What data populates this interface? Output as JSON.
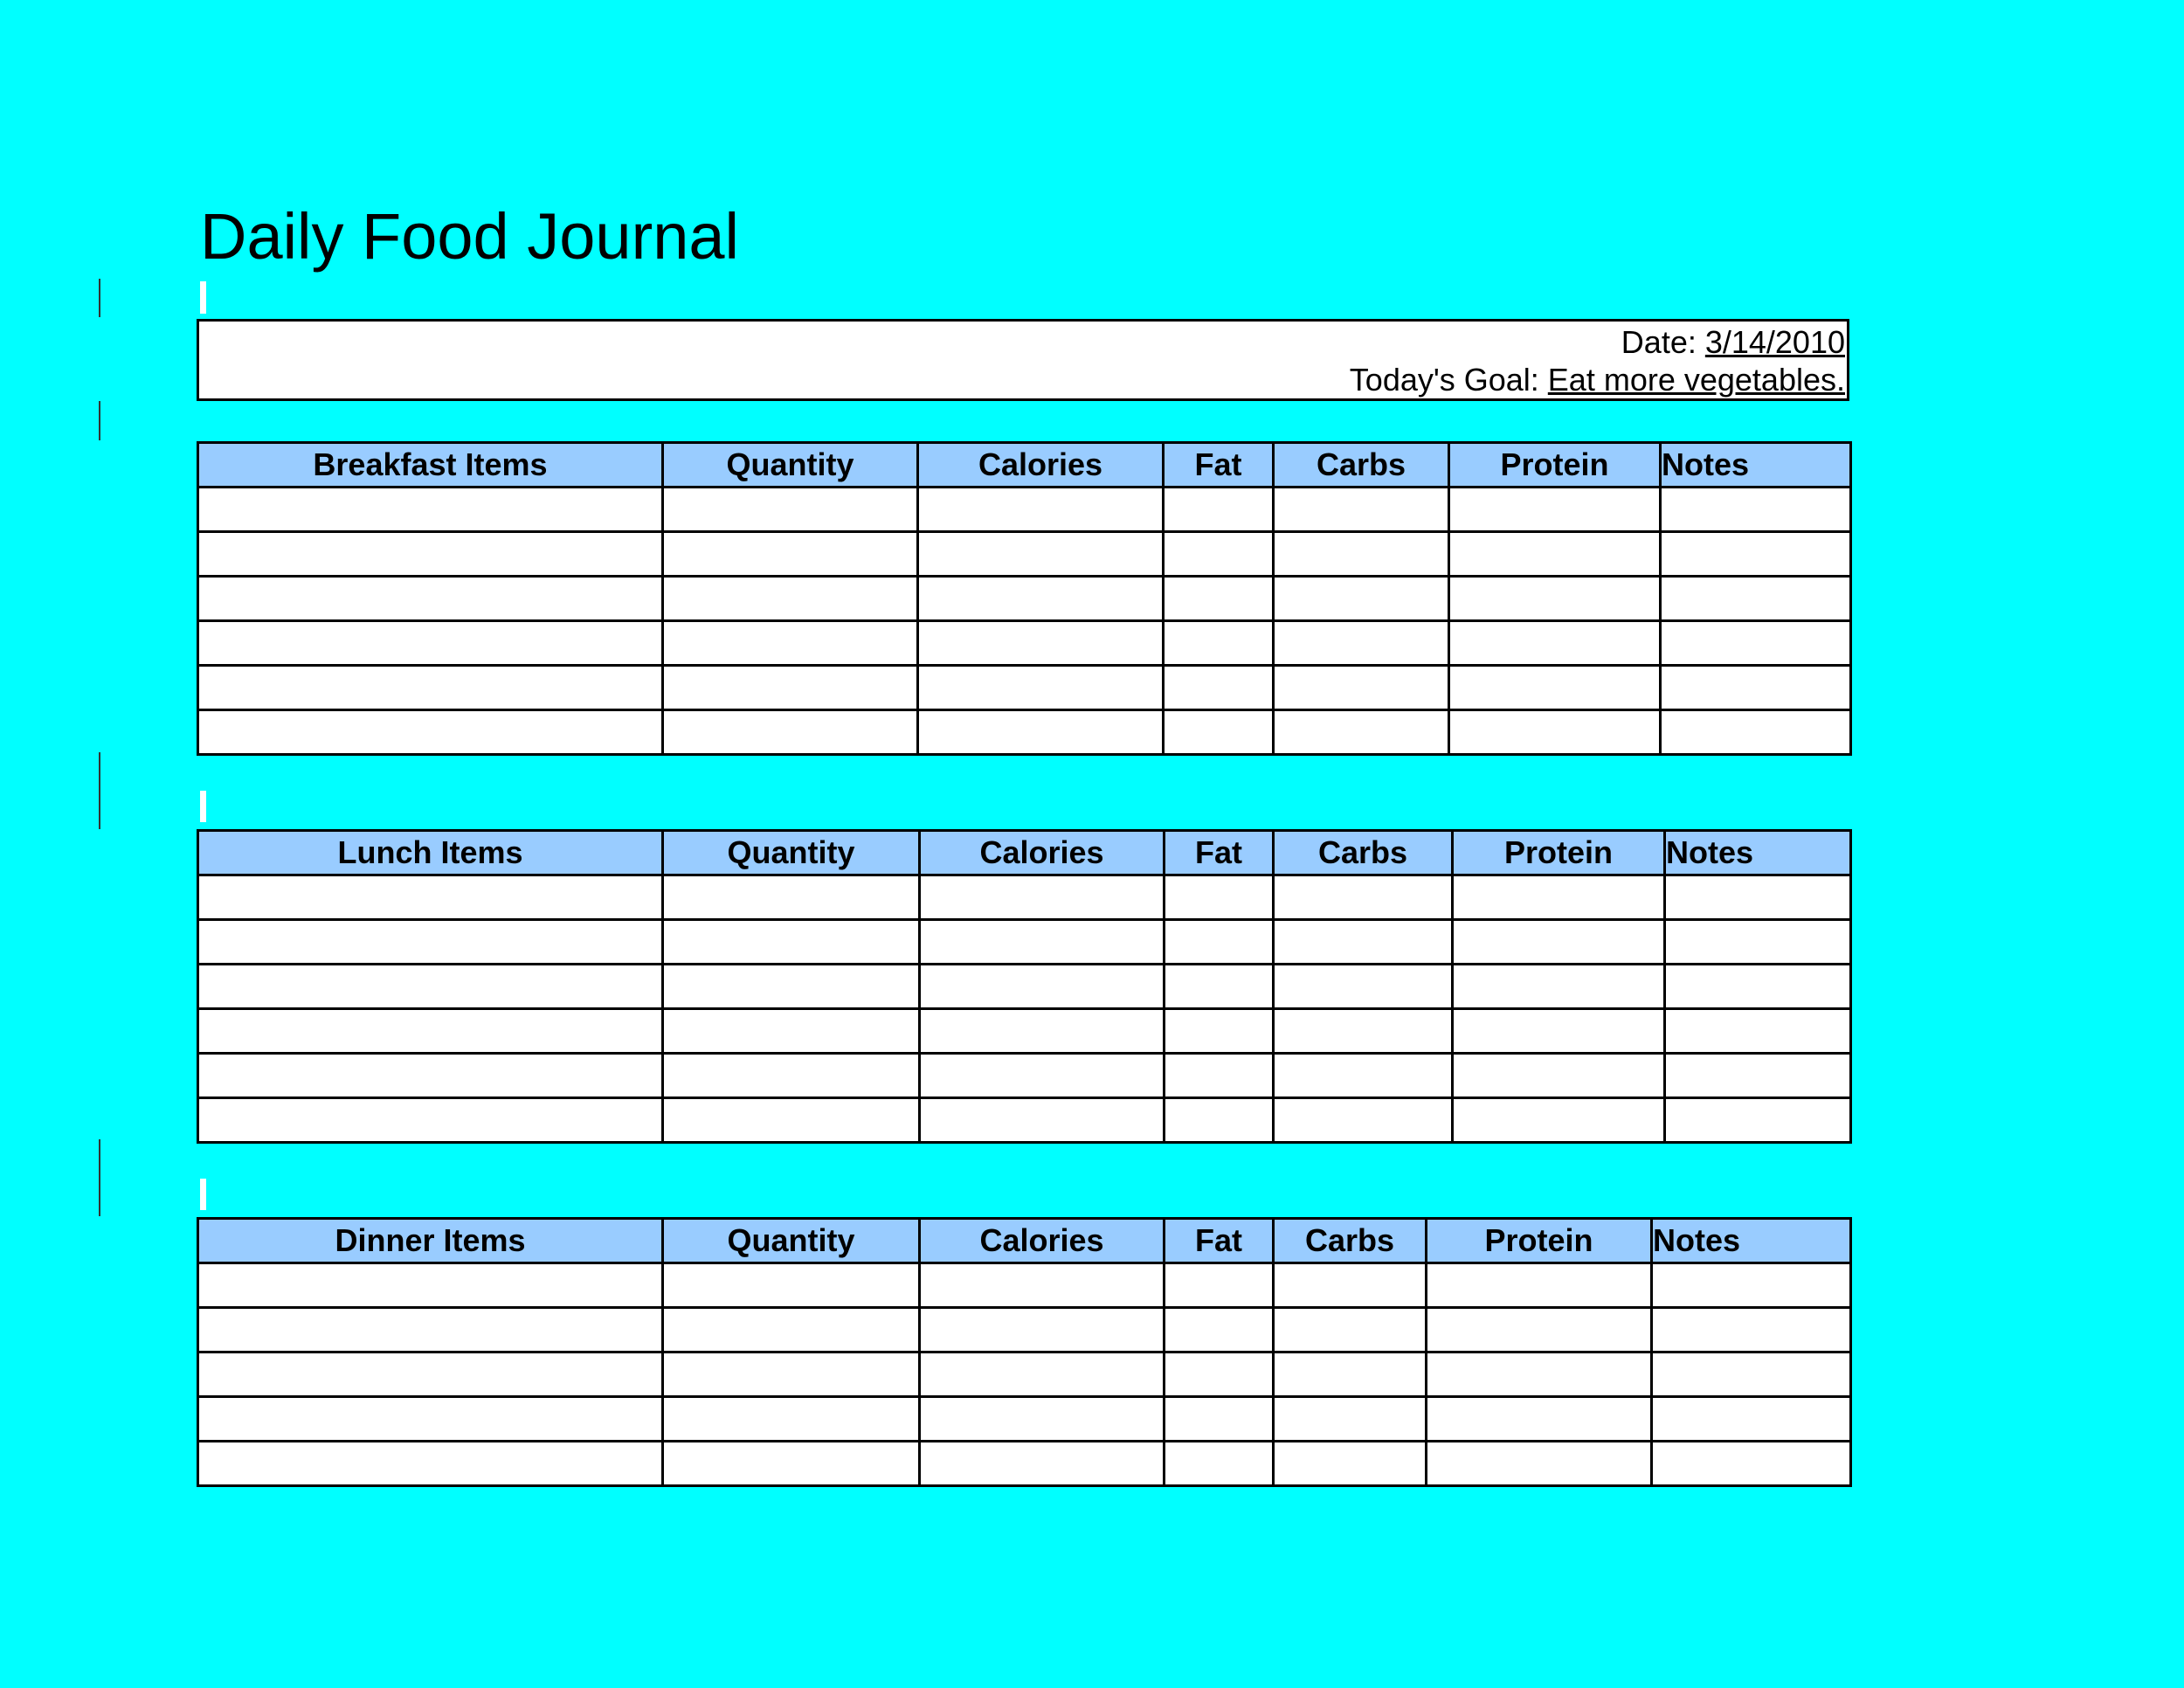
{
  "title": "Daily Food Journal",
  "info": {
    "date_label": "Date: ",
    "date_value": "3/14/2010",
    "goal_label": "Today's Goal: ",
    "goal_value": "Eat more vegetables."
  },
  "colors": {
    "background": "#00FFFF",
    "header_fill": "#99CCFF"
  },
  "tables": [
    {
      "id": "breakfast",
      "headers": [
        "Breakfast Items",
        "Quantity",
        "Calories",
        "Fat",
        "Carbs",
        "Protein",
        "Notes"
      ],
      "rows": 6
    },
    {
      "id": "lunch",
      "headers": [
        "Lunch Items",
        "Quantity",
        "Calories",
        "Fat",
        "Carbs",
        "Protein",
        "Notes"
      ],
      "rows": 6
    },
    {
      "id": "dinner",
      "headers": [
        "Dinner Items",
        "Quantity",
        "Calories",
        "Fat",
        "Carbs",
        "Protein",
        "Notes"
      ],
      "rows": 5
    }
  ]
}
